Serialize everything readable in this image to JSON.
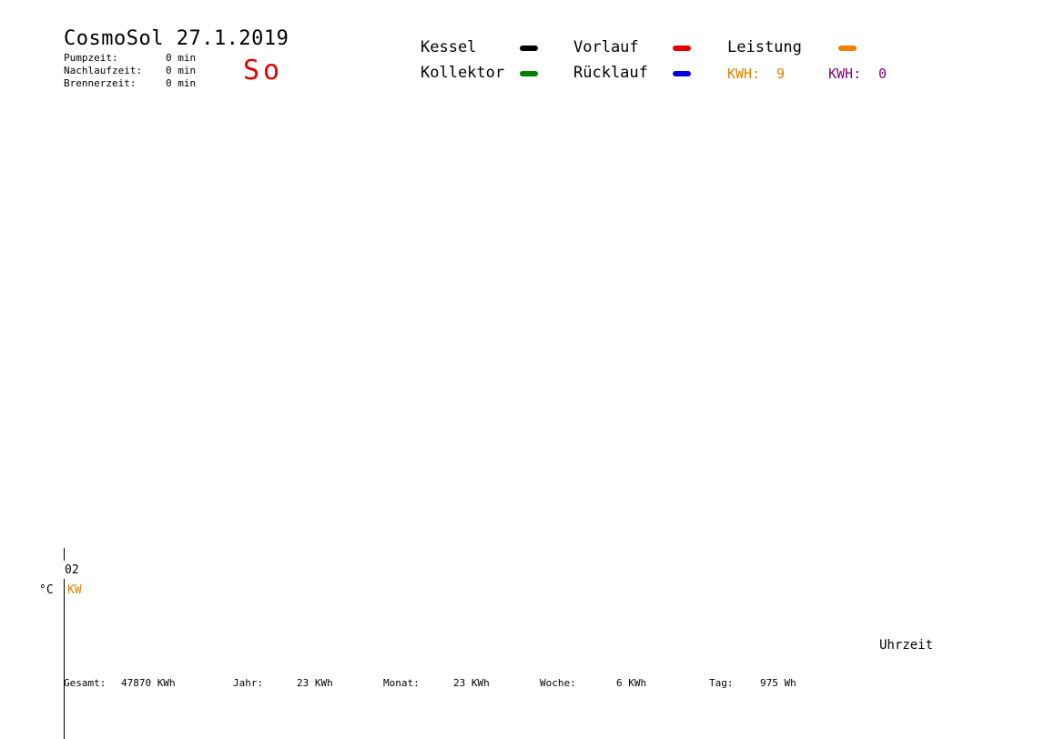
{
  "header": {
    "title": "CosmoSol 27.1.2019",
    "day": "So",
    "stats": [
      {
        "label": "Pumpzeit:",
        "value": "0 min"
      },
      {
        "label": "Nachlaufzeit:",
        "value": "0 min"
      },
      {
        "label": "Brennerzeit:",
        "value": "0 min"
      }
    ]
  },
  "legend": [
    {
      "label": "Kessel",
      "color": "#000000"
    },
    {
      "label": "Kollektor",
      "color": "#008000"
    },
    {
      "label": "Vorlauf",
      "color": "#e00000"
    },
    {
      "label": "Rücklauf",
      "color": "#0000e0"
    },
    {
      "label": "Leistung",
      "color": "#f08000"
    }
  ],
  "kwh": [
    {
      "label": "KWH:",
      "value": "9",
      "color": "#e08000"
    },
    {
      "label": "KWH:",
      "value": "0",
      "color": "#800080"
    }
  ],
  "chart_data": {
    "type": "line",
    "title": "CosmoSol 27.1.2019",
    "xlabel": "Uhrzeit",
    "ylabel": "°C",
    "y2label": "KW",
    "yticks": [
      "02"
    ],
    "series": [
      {
        "name": "Kessel",
        "values": []
      },
      {
        "name": "Kollektor",
        "values": []
      },
      {
        "name": "Vorlauf",
        "values": []
      },
      {
        "name": "Rücklauf",
        "values": []
      },
      {
        "name": "Leistung",
        "values": []
      }
    ],
    "colors": {
      "kw_label": "#e08000"
    }
  },
  "footer": [
    {
      "label": "Gesamt:",
      "value": "47870 KWh"
    },
    {
      "label": "Jahr:",
      "value": "23 KWh"
    },
    {
      "label": "Monat:",
      "value": "23 KWh"
    },
    {
      "label": "Woche:",
      "value": "6 KWh"
    },
    {
      "label": "Tag:",
      "value": "975 Wh"
    }
  ]
}
